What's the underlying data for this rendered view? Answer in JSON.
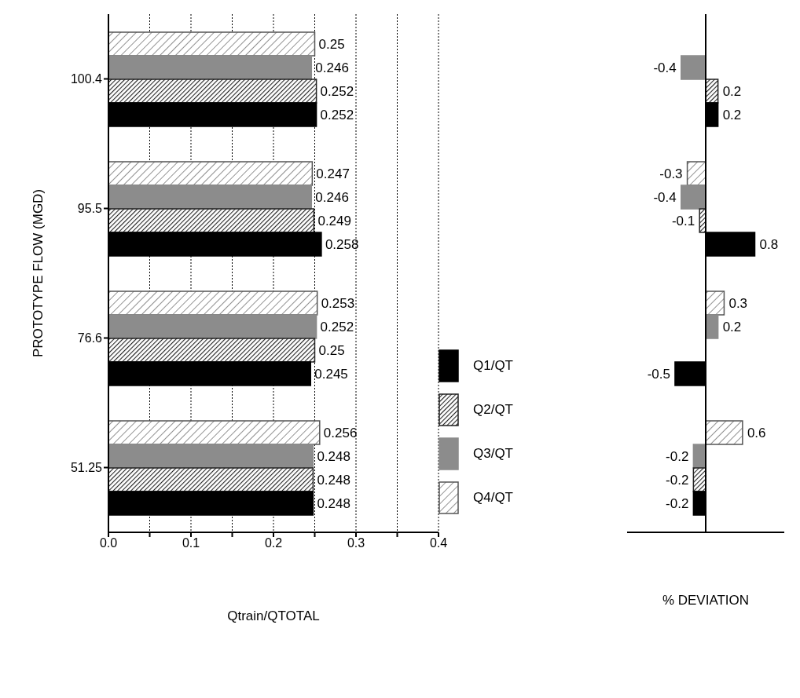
{
  "chart_data": [
    {
      "type": "bar",
      "orientation": "horizontal",
      "xlabel": "Qtrain/QTOTAL",
      "ylabel": "PROTOTYPE FLOW (MGD)",
      "categories": [
        "100.4",
        "95.5",
        "76.6",
        "51.25"
      ],
      "series": [
        {
          "name": "Q1/QT",
          "color": "#000000",
          "values": [
            0.252,
            0.258,
            0.245,
            0.248
          ]
        },
        {
          "name": "Q2/QT",
          "color": "#222222",
          "values": [
            0.252,
            0.249,
            0.25,
            0.248
          ]
        },
        {
          "name": "Q3/QT",
          "color": "#8c8c8c",
          "values": [
            0.246,
            0.246,
            0.252,
            0.248
          ]
        },
        {
          "name": "Q4/QT",
          "color": "#555555",
          "values": [
            0.25,
            0.247,
            0.253,
            0.256
          ]
        }
      ],
      "xlim": [
        0,
        0.4
      ],
      "xticks": [
        {
          "value": 0,
          "label": "0.0"
        },
        {
          "value": 0.05,
          "label": null
        },
        0.1,
        {
          "value": 0.15,
          "label": null
        },
        0.2,
        {
          "value": 0.25,
          "label": null
        },
        0.3,
        {
          "value": 0.35,
          "label": null
        },
        0.4
      ],
      "grid": "x",
      "legend": "right",
      "data_labels": true
    },
    {
      "type": "bar",
      "orientation": "horizontal",
      "xlabel": "% DEVIATION",
      "categories": [
        "100.4",
        "95.5",
        "76.6",
        "51.25"
      ],
      "tick_labels": false,
      "series": [
        {
          "color": "#000000",
          "values": [
            0.2,
            0.8,
            -0.5,
            -0.2
          ],
          "value_labels": [
            "0.2",
            "0.8",
            "-0.5",
            "-0.2"
          ]
        },
        {
          "color": "#222222",
          "values": [
            0.2,
            -0.1,
            0,
            -0.2
          ],
          "value_labels": [
            "0.2",
            "-0.1",
            null,
            "-0.2"
          ]
        },
        {
          "color": "#8c8c8c",
          "values": [
            -0.4,
            -0.4,
            0.2,
            -0.2
          ],
          "value_labels": [
            "-0.4",
            "-0.4",
            "0.2",
            "-0.2"
          ]
        },
        {
          "color": "#555555",
          "values": [
            0,
            -0.3,
            0.3,
            0.6
          ],
          "value_labels": [
            null,
            "-0.3",
            "0.3",
            "0.6"
          ]
        }
      ]
    }
  ]
}
